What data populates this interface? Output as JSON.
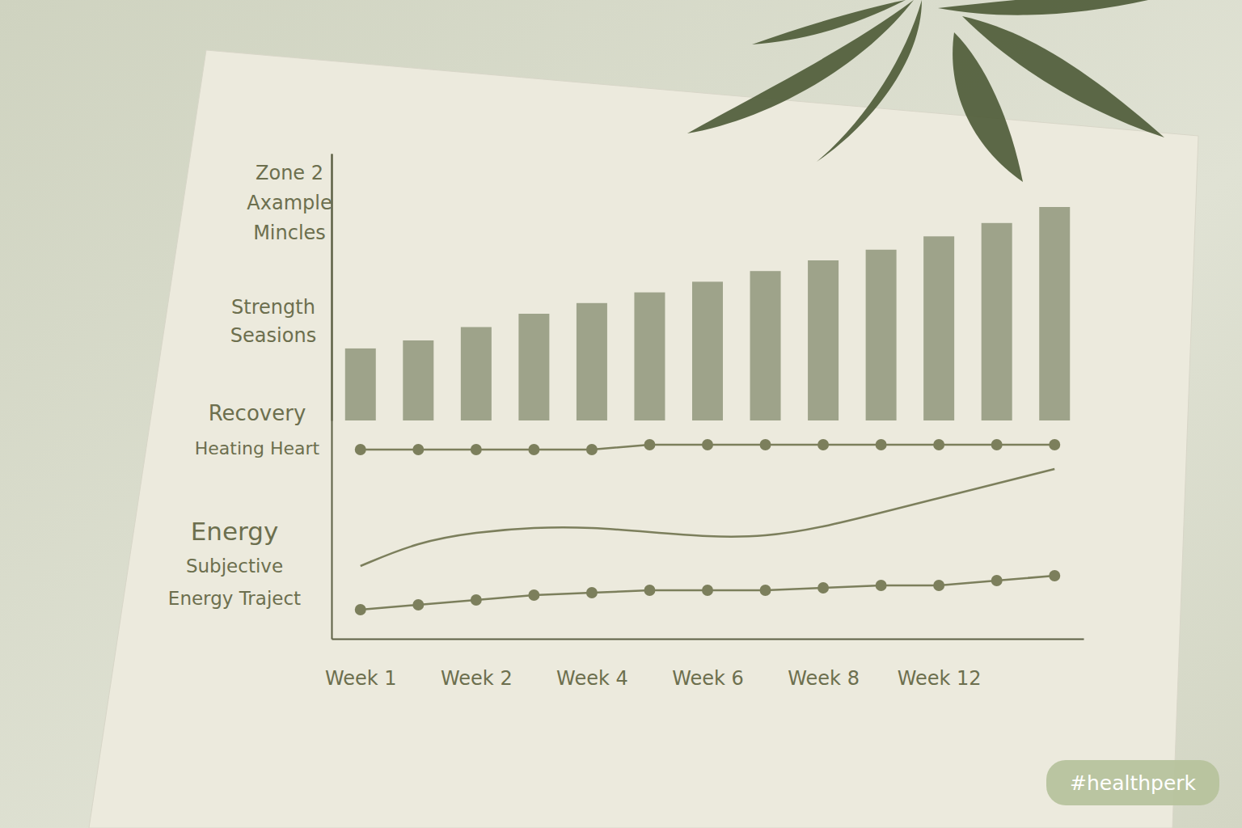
{
  "chart_data": {
    "type": "bar",
    "categories": [
      "Week 1",
      null,
      "Week 2",
      null,
      "Week 4",
      null,
      "Week 6",
      null,
      "Week 8",
      null,
      "Week 12",
      null,
      null
    ],
    "annotations": [
      [
        "Zone 2",
        "Axample",
        "Mincles"
      ],
      [
        "Strength",
        "Seasions"
      ],
      [
        "Recovery",
        "Heating Heart"
      ],
      [
        "Energy",
        "Subjective",
        "Energy Traject"
      ]
    ],
    "ylim": [
      0,
      100
    ],
    "yticks": [],
    "y2lim": [
      0,
      100
    ],
    "y2ticks": [],
    "tick_labels": "x",
    "grid": false,
    "series": [
      {
        "type": "bar",
        "axis": "y2",
        "color": "#9ea38a",
        "values": [
          27,
          30,
          35,
          40,
          44,
          48,
          52,
          56,
          60,
          64,
          69,
          74,
          80
        ]
      },
      {
        "type": "line",
        "color": "#7c7f5c",
        "marker": "circle",
        "line_style": "solid",
        "values": [
          39,
          39,
          39,
          39,
          39,
          40,
          40,
          40,
          40,
          40,
          40,
          40,
          40
        ]
      },
      {
        "type": "line",
        "color": "#7c7f5c",
        "marker": "none",
        "line_style": "smooth",
        "values": [
          15,
          20,
          22,
          23,
          23,
          22,
          21,
          21,
          23,
          26,
          29,
          32,
          35
        ]
      },
      {
        "type": "line",
        "color": "#7c7f5c",
        "marker": "circle",
        "line_style": "solid",
        "values": [
          6,
          7,
          8,
          9,
          9.5,
          10,
          10,
          10,
          10.5,
          11,
          11,
          12,
          13
        ]
      }
    ]
  },
  "badge": "#healthperk"
}
